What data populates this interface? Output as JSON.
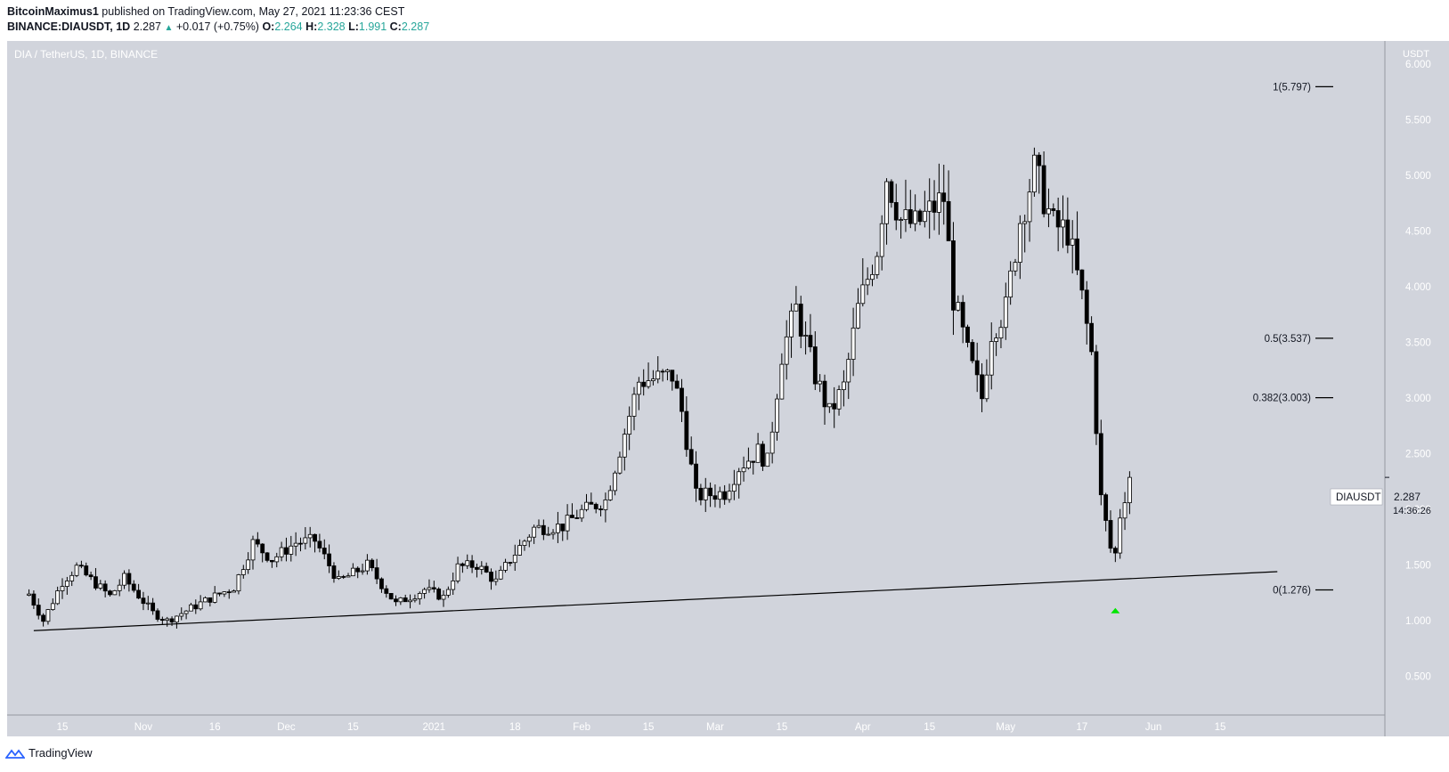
{
  "header": {
    "author": "BitcoinMaximus1",
    "published_text": "published on TradingView.com, May 27, 2021 11:23:36 CEST",
    "symbol_line": "BINANCE:DIAUSDT, 1D",
    "last": "2.287",
    "change": "+0.017 (+0.75%)",
    "o_label": "O:",
    "o_value": "2.264",
    "h_label": "H:",
    "h_value": "2.328",
    "l_label": "L:",
    "l_value": "1.991",
    "c_label": "C:",
    "c_value": "2.287"
  },
  "footer": {
    "brand": "TradingView"
  },
  "colors": {
    "background": "#d1d4dc",
    "candle_up": "#ffffff",
    "candle_down": "#000000",
    "wick": "#000000",
    "marker": "#00e600"
  },
  "chart_data": {
    "type": "candlestick",
    "title": "DIA / TetherUS, 1D, BINANCE",
    "y_unit": "USDT",
    "ylim": [
      0.4,
      6.2
    ],
    "y_ticks": [
      "0.500",
      "1.000",
      "1.500",
      "2.000",
      "2.500",
      "3.000",
      "3.500",
      "4.000",
      "4.500",
      "5.000",
      "5.500",
      "6.000"
    ],
    "x_tick_labels": [
      {
        "label": "15",
        "date": "2020-10-15"
      },
      {
        "label": "Nov",
        "date": "2020-11-01"
      },
      {
        "label": "16",
        "date": "2020-11-16"
      },
      {
        "label": "Dec",
        "date": "2020-12-01"
      },
      {
        "label": "15",
        "date": "2020-12-15"
      },
      {
        "label": "2021",
        "date": "2021-01-01"
      },
      {
        "label": "18",
        "date": "2021-01-18"
      },
      {
        "label": "Feb",
        "date": "2021-02-01"
      },
      {
        "label": "15",
        "date": "2021-02-15"
      },
      {
        "label": "Mar",
        "date": "2021-03-01"
      },
      {
        "label": "15",
        "date": "2021-03-15"
      },
      {
        "label": "Apr",
        "date": "2021-04-01"
      },
      {
        "label": "15",
        "date": "2021-04-15"
      },
      {
        "label": "May",
        "date": "2021-05-01"
      },
      {
        "label": "17",
        "date": "2021-05-17"
      },
      {
        "label": "Jun",
        "date": "2021-06-01"
      },
      {
        "label": "15",
        "date": "2021-06-15"
      }
    ],
    "first_date": "2020-10-08",
    "keyframes": [
      {
        "date": "2020-10-08",
        "price": 1.24
      },
      {
        "date": "2020-10-11",
        "price": 1.0
      },
      {
        "date": "2020-10-15",
        "price": 1.35
      },
      {
        "date": "2020-10-18",
        "price": 1.48
      },
      {
        "date": "2020-10-25",
        "price": 1.22
      },
      {
        "date": "2020-10-28",
        "price": 1.38
      },
      {
        "date": "2020-11-03",
        "price": 1.07
      },
      {
        "date": "2020-11-06",
        "price": 1.0
      },
      {
        "date": "2020-11-15",
        "price": 1.2
      },
      {
        "date": "2020-11-20",
        "price": 1.3
      },
      {
        "date": "2020-11-24",
        "price": 1.7
      },
      {
        "date": "2020-11-28",
        "price": 1.55
      },
      {
        "date": "2020-12-03",
        "price": 1.7
      },
      {
        "date": "2020-12-07",
        "price": 1.72
      },
      {
        "date": "2020-12-12",
        "price": 1.35
      },
      {
        "date": "2020-12-18",
        "price": 1.5
      },
      {
        "date": "2020-12-24",
        "price": 1.15
      },
      {
        "date": "2020-12-30",
        "price": 1.28
      },
      {
        "date": "2021-01-03",
        "price": 1.21
      },
      {
        "date": "2021-01-06",
        "price": 1.48
      },
      {
        "date": "2021-01-10",
        "price": 1.5
      },
      {
        "date": "2021-01-14",
        "price": 1.35
      },
      {
        "date": "2021-01-17",
        "price": 1.55
      },
      {
        "date": "2021-01-22",
        "price": 1.83
      },
      {
        "date": "2021-01-28",
        "price": 1.85
      },
      {
        "date": "2021-02-01",
        "price": 1.98
      },
      {
        "date": "2021-02-06",
        "price": 2.08
      },
      {
        "date": "2021-02-13",
        "price": 3.15
      },
      {
        "date": "2021-02-20",
        "price": 3.2
      },
      {
        "date": "2021-02-22",
        "price": 2.88
      },
      {
        "date": "2021-02-25",
        "price": 2.12
      },
      {
        "date": "2021-03-03",
        "price": 2.15
      },
      {
        "date": "2021-03-06",
        "price": 2.38
      },
      {
        "date": "2021-03-10",
        "price": 2.52
      },
      {
        "date": "2021-03-12",
        "price": 2.42
      },
      {
        "date": "2021-03-15",
        "price": 3.4
      },
      {
        "date": "2021-03-18",
        "price": 3.8
      },
      {
        "date": "2021-03-22",
        "price": 3.2
      },
      {
        "date": "2021-03-25",
        "price": 2.86
      },
      {
        "date": "2021-03-28",
        "price": 3.1
      },
      {
        "date": "2021-03-31",
        "price": 3.8
      },
      {
        "date": "2021-04-04",
        "price": 4.35
      },
      {
        "date": "2021-04-06",
        "price": 5.0
      },
      {
        "date": "2021-04-09",
        "price": 4.6
      },
      {
        "date": "2021-04-12",
        "price": 4.55
      },
      {
        "date": "2021-04-18",
        "price": 4.8
      },
      {
        "date": "2021-04-20",
        "price": 3.9
      },
      {
        "date": "2021-04-23",
        "price": 3.4
      },
      {
        "date": "2021-04-26",
        "price": 3.0
      },
      {
        "date": "2021-04-28",
        "price": 3.6
      },
      {
        "date": "2021-05-01",
        "price": 3.8
      },
      {
        "date": "2021-05-04",
        "price": 4.6
      },
      {
        "date": "2021-05-07",
        "price": 5.05
      },
      {
        "date": "2021-05-11",
        "price": 4.55
      },
      {
        "date": "2021-05-14",
        "price": 4.5
      },
      {
        "date": "2021-05-17",
        "price": 3.9
      },
      {
        "date": "2021-05-19",
        "price": 3.4
      },
      {
        "date": "2021-05-21",
        "price": 2.1
      },
      {
        "date": "2021-05-23",
        "price": 1.65
      },
      {
        "date": "2021-05-24",
        "price": 1.6
      },
      {
        "date": "2021-05-25",
        "price": 1.95
      },
      {
        "date": "2021-05-27",
        "price": 2.287
      }
    ],
    "trendline": [
      {
        "date": "2020-10-09",
        "price": 0.91
      },
      {
        "date": "2021-06-27",
        "price": 1.44
      }
    ],
    "fibonacci": [
      {
        "label": "1(5.797)",
        "price": 5.797
      },
      {
        "label": "0.5(3.537)",
        "price": 3.537
      },
      {
        "label": "0.382(3.003)",
        "price": 3.003
      },
      {
        "label": "0(1.276)",
        "price": 1.276
      }
    ],
    "last_price": {
      "symbol": "DIAUSDT",
      "value": "2.287",
      "countdown": "14:36:26"
    },
    "marker": {
      "date": "2021-05-24",
      "price": 1.09
    }
  }
}
